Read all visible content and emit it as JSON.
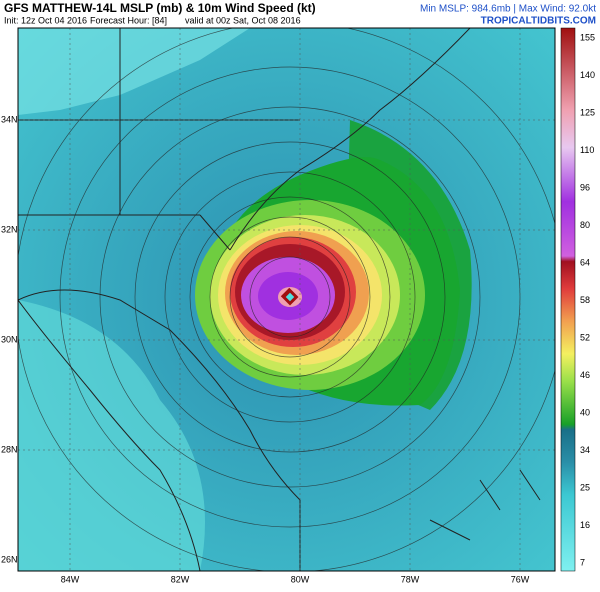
{
  "header": {
    "title": "GFS MATTHEW-14L MSLP (mb) & 10m Wind Speed (kt)",
    "init": "Init: 12z Oct 04 2016",
    "forecast_hour": "Forecast Hour: [84]",
    "valid": "valid at 00z Sat, Oct 08 2016",
    "stats": "Min MSLP: 984.6mb | Max Wind: 92.0kt",
    "site": "TROPICALTIDBITS.COM"
  },
  "map": {
    "lat_labels": [
      "34N",
      "32N",
      "30N",
      "28N",
      "26N"
    ],
    "lon_labels": [
      "84W",
      "82W",
      "80W",
      "78W",
      "76W"
    ]
  },
  "colorbar": {
    "labels": [
      155,
      140,
      125,
      110,
      96,
      80,
      64,
      58,
      52,
      46,
      40,
      34,
      25,
      16,
      7
    ]
  }
}
